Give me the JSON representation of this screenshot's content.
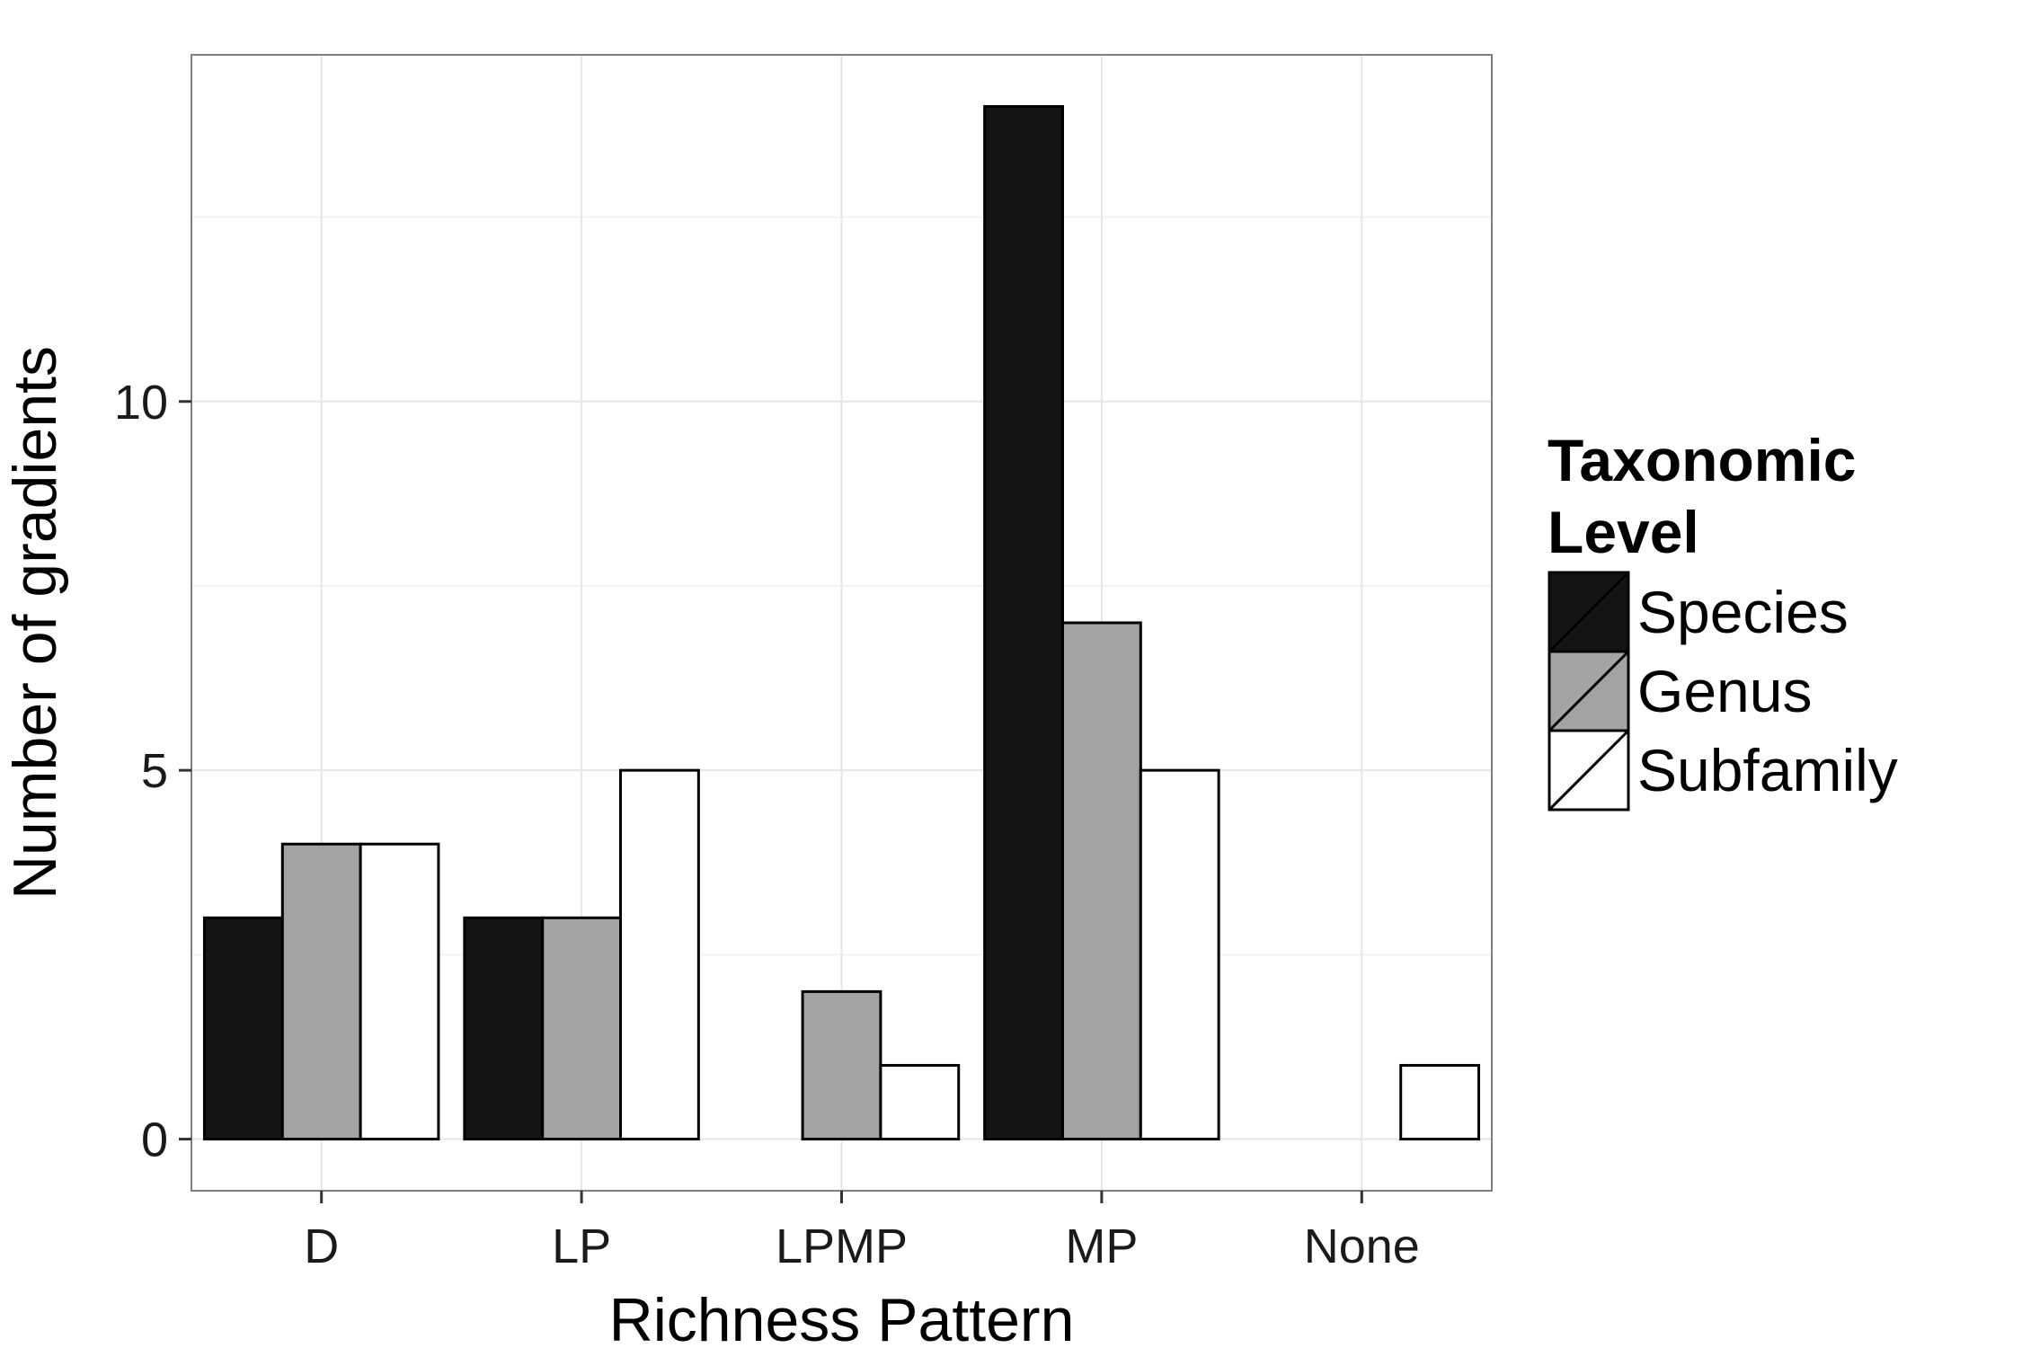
{
  "chart_data": {
    "type": "bar",
    "xlabel": "Richness Pattern",
    "ylabel": "Number of gradients",
    "categories": [
      "D",
      "LP",
      "LPMP",
      "MP",
      "None"
    ],
    "series": [
      {
        "name": "Species",
        "color": "#141414",
        "values": [
          3,
          3,
          0,
          14,
          0
        ]
      },
      {
        "name": "Genus",
        "color": "#a3a3a3",
        "values": [
          4,
          3,
          2,
          7,
          0
        ]
      },
      {
        "name": "Subfamily",
        "color": "#ffffff",
        "values": [
          4,
          5,
          1,
          5,
          1
        ]
      }
    ],
    "ylim": [
      -0.7,
      14.7
    ],
    "yticks": [
      0,
      5,
      10
    ],
    "ytick_labels": [
      "0",
      "5",
      "10"
    ],
    "legend": {
      "title": "Taxonomic Level",
      "title_lines": [
        "Taxonomic",
        "Level"
      ],
      "position": "right"
    },
    "grid": true,
    "panel_background": "#ffffff",
    "grid_color": "#e6e6e6"
  }
}
